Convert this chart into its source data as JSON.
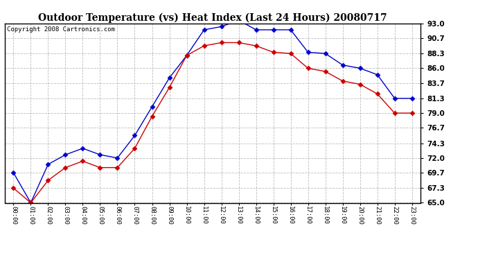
{
  "title": "Outdoor Temperature (vs) Heat Index (Last 24 Hours) 20080717",
  "copyright": "Copyright 2008 Cartronics.com",
  "x_labels": [
    "00:00",
    "01:00",
    "02:00",
    "03:00",
    "04:00",
    "05:00",
    "06:00",
    "07:00",
    "08:00",
    "09:00",
    "10:00",
    "11:00",
    "12:00",
    "13:00",
    "14:00",
    "15:00",
    "16:00",
    "17:00",
    "18:00",
    "19:00",
    "20:00",
    "21:00",
    "22:00",
    "23:00"
  ],
  "blue_temp": [
    69.7,
    65.0,
    71.0,
    72.5,
    73.5,
    72.5,
    72.0,
    75.5,
    80.0,
    84.5,
    88.0,
    92.0,
    92.5,
    93.5,
    92.0,
    92.0,
    92.0,
    88.5,
    88.3,
    86.5,
    86.0,
    85.0,
    81.3,
    81.3
  ],
  "red_heat": [
    67.3,
    65.0,
    68.5,
    70.5,
    71.5,
    70.5,
    70.5,
    73.5,
    78.5,
    83.0,
    88.0,
    89.5,
    90.0,
    90.0,
    89.5,
    88.5,
    88.3,
    86.0,
    85.5,
    84.0,
    83.5,
    82.0,
    79.0,
    79.0
  ],
  "ylim": [
    65.0,
    93.0
  ],
  "yticks": [
    65.0,
    67.3,
    69.7,
    72.0,
    74.3,
    76.7,
    79.0,
    81.3,
    83.7,
    86.0,
    88.3,
    90.7,
    93.0
  ],
  "blue_color": "#0000cc",
  "red_color": "#cc0000",
  "bg_color": "#ffffff",
  "grid_color": "#bbbbbb",
  "title_fontsize": 10,
  "copyright_fontsize": 6.5,
  "tick_fontsize": 7.5,
  "xtick_fontsize": 6.5
}
